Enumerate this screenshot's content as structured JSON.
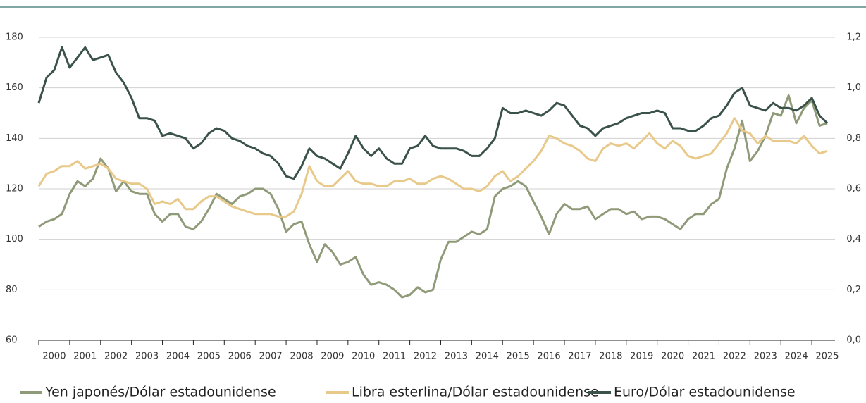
{
  "chart_data": {
    "type": "line",
    "x": [
      2000,
      2000.25,
      2000.5,
      2000.75,
      2001,
      2001.25,
      2001.5,
      2001.75,
      2002,
      2002.25,
      2002.5,
      2002.75,
      2003,
      2003.25,
      2003.5,
      2003.75,
      2004,
      2004.25,
      2004.5,
      2004.75,
      2005,
      2005.25,
      2005.5,
      2005.75,
      2006,
      2006.25,
      2006.5,
      2006.75,
      2007,
      2007.25,
      2007.5,
      2007.75,
      2008,
      2008.25,
      2008.5,
      2008.75,
      2009,
      2009.25,
      2009.5,
      2009.75,
      2010,
      2010.25,
      2010.5,
      2010.75,
      2011,
      2011.25,
      2011.5,
      2011.75,
      2012,
      2012.25,
      2012.5,
      2012.75,
      2013,
      2013.25,
      2013.5,
      2013.75,
      2014,
      2014.25,
      2014.5,
      2014.75,
      2015,
      2015.25,
      2015.5,
      2015.75,
      2016,
      2016.25,
      2016.5,
      2016.75,
      2017,
      2017.25,
      2017.5,
      2017.75,
      2018,
      2018.25,
      2018.5,
      2018.75,
      2019,
      2019.25,
      2019.5,
      2019.75,
      2020,
      2020.25,
      2020.5,
      2020.75,
      2021,
      2021.25,
      2021.5,
      2021.75,
      2022,
      2022.25,
      2022.5,
      2022.75,
      2023,
      2023.25,
      2023.5,
      2023.75,
      2024,
      2024.25,
      2024.5,
      2024.75,
      2025,
      2025.25,
      2025.5
    ],
    "series": [
      {
        "name": "Yen japonés/Dólar estadounidense",
        "color": "#8e9a78",
        "values": [
          105,
          107,
          108,
          110,
          118,
          123,
          121,
          124,
          132,
          128,
          119,
          123,
          119,
          118,
          118,
          110,
          107,
          110,
          110,
          105,
          104,
          107,
          112,
          118,
          116,
          114,
          117,
          118,
          120,
          120,
          118,
          112,
          103,
          106,
          107,
          98,
          91,
          98,
          95,
          90,
          91,
          93,
          86,
          82,
          83,
          82,
          80,
          77,
          78,
          81,
          79,
          80,
          92,
          99,
          99,
          101,
          103,
          102,
          104,
          117,
          120,
          121,
          123,
          121,
          115,
          109,
          102,
          110,
          114,
          112,
          112,
          113,
          108,
          110,
          112,
          112,
          110,
          111,
          108,
          109,
          109,
          108,
          106,
          104,
          108,
          110,
          110,
          114,
          116,
          128,
          136,
          147,
          131,
          135,
          141,
          150,
          149,
          157,
          146,
          152,
          155,
          145,
          146
        ]
      },
      {
        "name": "Libra esterlina/Dólar estadounidense",
        "color": "#e8c98a",
        "values": [
          121,
          126,
          127,
          129,
          129,
          131,
          128,
          129,
          130,
          128,
          124,
          123,
          122,
          122,
          120,
          114,
          115,
          114,
          116,
          112,
          112,
          115,
          117,
          117,
          115,
          113,
          112,
          111,
          110,
          110,
          110,
          109,
          109,
          111,
          118,
          129,
          123,
          121,
          121,
          124,
          127,
          123,
          122,
          122,
          121,
          121,
          123,
          123,
          124,
          122,
          122,
          124,
          125,
          124,
          122,
          120,
          120,
          119,
          121,
          125,
          127,
          123,
          125,
          128,
          131,
          135,
          141,
          140,
          138,
          137,
          135,
          132,
          131,
          136,
          138,
          137,
          138,
          136,
          139,
          142,
          138,
          136,
          139,
          137,
          133,
          132,
          133,
          134,
          138,
          142,
          148,
          143,
          142,
          138,
          141,
          139,
          139,
          139,
          138,
          141,
          137,
          134,
          135
        ]
      },
      {
        "name": "Euro/Dólar estadounidense",
        "color": "#3b524a",
        "axis": "y2",
        "values": [
          0.94,
          1.04,
          1.07,
          1.16,
          1.08,
          1.12,
          1.16,
          1.11,
          1.12,
          1.13,
          1.06,
          1.02,
          0.96,
          0.88,
          0.88,
          0.87,
          0.81,
          0.82,
          0.81,
          0.8,
          0.76,
          0.78,
          0.82,
          0.84,
          0.83,
          0.8,
          0.79,
          0.77,
          0.76,
          0.74,
          0.73,
          0.7,
          0.65,
          0.64,
          0.69,
          0.76,
          0.73,
          0.72,
          0.7,
          0.68,
          0.74,
          0.81,
          0.76,
          0.73,
          0.76,
          0.72,
          0.7,
          0.7,
          0.76,
          0.77,
          0.81,
          0.77,
          0.76,
          0.76,
          0.76,
          0.75,
          0.73,
          0.73,
          0.76,
          0.8,
          0.92,
          0.9,
          0.9,
          0.91,
          0.9,
          0.89,
          0.91,
          0.94,
          0.93,
          0.89,
          0.85,
          0.84,
          0.81,
          0.84,
          0.85,
          0.86,
          0.88,
          0.89,
          0.9,
          0.9,
          0.91,
          0.9,
          0.84,
          0.84,
          0.83,
          0.83,
          0.85,
          0.88,
          0.89,
          0.93,
          0.98,
          1.0,
          0.93,
          0.92,
          0.91,
          0.94,
          0.92,
          0.92,
          0.91,
          0.93,
          0.96,
          0.89,
          0.86
        ]
      }
    ],
    "xlim": [
      2000,
      2025.75
    ],
    "xticks": [
      2000,
      2001,
      2002,
      2003,
      2004,
      2005,
      2006,
      2007,
      2008,
      2009,
      2010,
      2011,
      2012,
      2013,
      2014,
      2015,
      2016,
      2017,
      2018,
      2019,
      2020,
      2021,
      2022,
      2023,
      2024,
      2025
    ],
    "ylim": [
      60,
      180
    ],
    "yticks": [
      60,
      80,
      100,
      120,
      140,
      160,
      180
    ],
    "y2lim": [
      0,
      1.2
    ],
    "y2ticks": [
      {
        "value": 0,
        "label": "0,0"
      },
      {
        "value": 0.2,
        "label": "0,2"
      },
      {
        "value": 0.4,
        "label": "0,4"
      },
      {
        "value": 0.6,
        "label": "0,6"
      },
      {
        "value": 0.8,
        "label": "0,8"
      },
      {
        "value": 1.0,
        "label": "1,0"
      },
      {
        "value": 1.2,
        "label": "1,2"
      }
    ],
    "grid": true
  }
}
